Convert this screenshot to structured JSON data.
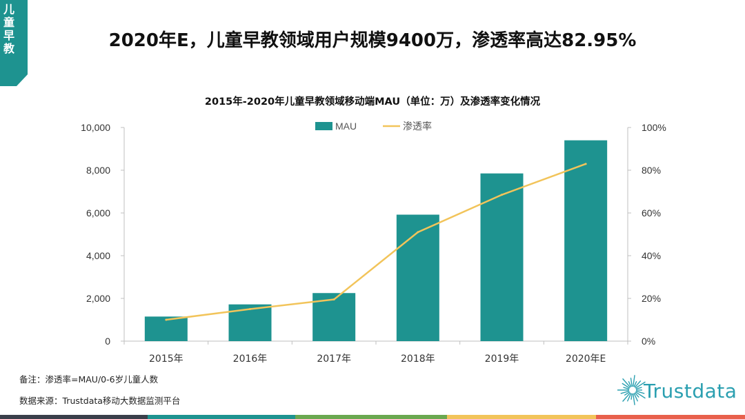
{
  "corner_tag": {
    "text": "儿童早教",
    "color": "#1e9390"
  },
  "page_title": "2020年E，儿童早教领域用户规模9400万，渗透率高达82.95%",
  "chart_data": {
    "type": "bar+line",
    "title": "2015年-2020年儿童早教领域移动端MAU（单位：万）及渗透率变化情况",
    "categories": [
      "2015年",
      "2016年",
      "2017年",
      "2018年",
      "2019年",
      "2020年E"
    ],
    "series": [
      {
        "name": "MAU",
        "type": "bar",
        "axis": "left",
        "color": "#1e9390",
        "values": [
          1150,
          1720,
          2250,
          5920,
          7850,
          9400
        ]
      },
      {
        "name": "渗透率",
        "type": "line",
        "axis": "right",
        "color": "#f2c45a",
        "values": [
          10.0,
          15.0,
          19.5,
          51.0,
          68.5,
          82.95
        ]
      }
    ],
    "y_left": {
      "min": 0,
      "max": 10000,
      "ticks": [
        "0",
        "2,000",
        "4,000",
        "6,000",
        "8,000",
        "10,000"
      ]
    },
    "y_right": {
      "min": 0,
      "max": 100,
      "ticks": [
        "0%",
        "20%",
        "40%",
        "60%",
        "80%",
        "100%"
      ]
    },
    "legend": [
      "MAU",
      "渗透率"
    ],
    "legend_position": "top-center",
    "grid": false
  },
  "notes": {
    "remark": "备注：渗透率=MAU/0-6岁儿童人数",
    "source": "数据来源：Trustdata移动大数据监测平台"
  },
  "logo": {
    "text": "Trustdata",
    "color": "#2a9fb0"
  },
  "footer_colors": [
    "#3a3f4a",
    "#1e9390",
    "#6aa84f",
    "#f2c45a",
    "#e8604c"
  ]
}
